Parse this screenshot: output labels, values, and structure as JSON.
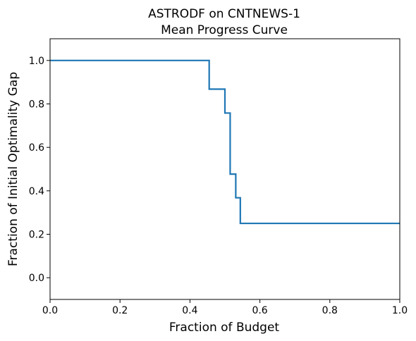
{
  "chart_data": {
    "type": "line",
    "title": "ASTRODF on CNTNEWS-1",
    "subtitle": "Mean Progress Curve",
    "xlabel": "Fraction of Budget",
    "ylabel": "Fraction of Initial Optimality Gap",
    "xlim": [
      0,
      1
    ],
    "ylim": [
      -0.1,
      1.1
    ],
    "x_ticks": [
      "0.0",
      "0.2",
      "0.4",
      "0.6",
      "0.8",
      "1.0"
    ],
    "y_ticks": [
      "0.0",
      "0.2",
      "0.4",
      "0.6",
      "0.8",
      "1.0"
    ],
    "grid": false,
    "color": "#1f77b4",
    "series": [
      {
        "step": "post",
        "x": [
          0.0,
          0.455,
          0.5,
          0.515,
          0.531,
          0.544,
          1.0
        ],
        "y": [
          1.0,
          0.868,
          0.758,
          0.477,
          0.368,
          0.25,
          0.25
        ]
      }
    ]
  }
}
